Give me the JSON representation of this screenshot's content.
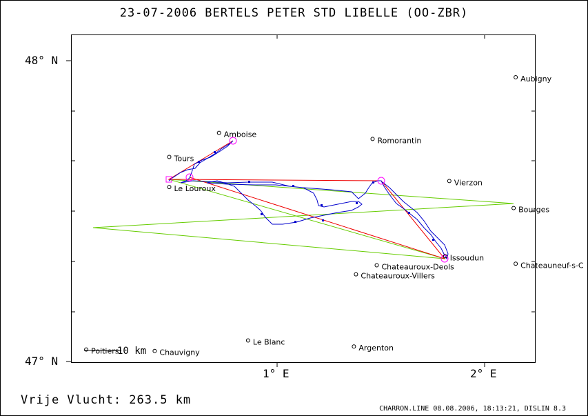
{
  "header": {
    "title": "23-07-2006    BERTELS PETER    STD LIBELLE (OO-ZBR)"
  },
  "axes": {
    "y_labels": [
      "48° N",
      "47° N"
    ],
    "x_labels": [
      "1° E",
      "2° E"
    ]
  },
  "footer": {
    "distance_label": "Vrije Vlucht:  263.5 km",
    "credits": "CHARRON.LINE 08.08.2006, 18:13:21, DISLIN 8.3"
  },
  "scale_label": "10  km",
  "towns": [
    {
      "name": "Aubigny",
      "lon": 2.15,
      "lat": 47.945
    },
    {
      "name": "Amboise",
      "lon": 0.72,
      "lat": 47.76
    },
    {
      "name": "Romorantin",
      "lon": 1.46,
      "lat": 47.74
    },
    {
      "name": "Tours",
      "lon": 0.48,
      "lat": 47.68
    },
    {
      "name": "Vierzon",
      "lon": 1.83,
      "lat": 47.6
    },
    {
      "name": "Le Louroux",
      "lon": 0.48,
      "lat": 47.58
    },
    {
      "name": "Bourges",
      "lon": 2.14,
      "lat": 47.51
    },
    {
      "name": "Issoudun",
      "lon": 1.81,
      "lat": 47.35
    },
    {
      "name": "Chateauroux-Deols",
      "lon": 1.48,
      "lat": 47.32
    },
    {
      "name": "Chateauneuf-s-C",
      "lon": 2.15,
      "lat": 47.325
    },
    {
      "name": "Chateauroux-Villers",
      "lon": 1.38,
      "lat": 47.29
    },
    {
      "name": "Le Blanc",
      "lon": 0.86,
      "lat": 47.07
    },
    {
      "name": "Poitiers",
      "lon": 0.08,
      "lat": 47.04
    },
    {
      "name": "Chauvigny",
      "lon": 0.41,
      "lat": 47.035
    },
    {
      "name": "Argenton",
      "lon": 1.37,
      "lat": 47.05
    }
  ],
  "colors": {
    "track": "#0000cc",
    "task": "#ee0000",
    "green": "#66cc00",
    "turnpoint": "#ff00ff"
  }
}
